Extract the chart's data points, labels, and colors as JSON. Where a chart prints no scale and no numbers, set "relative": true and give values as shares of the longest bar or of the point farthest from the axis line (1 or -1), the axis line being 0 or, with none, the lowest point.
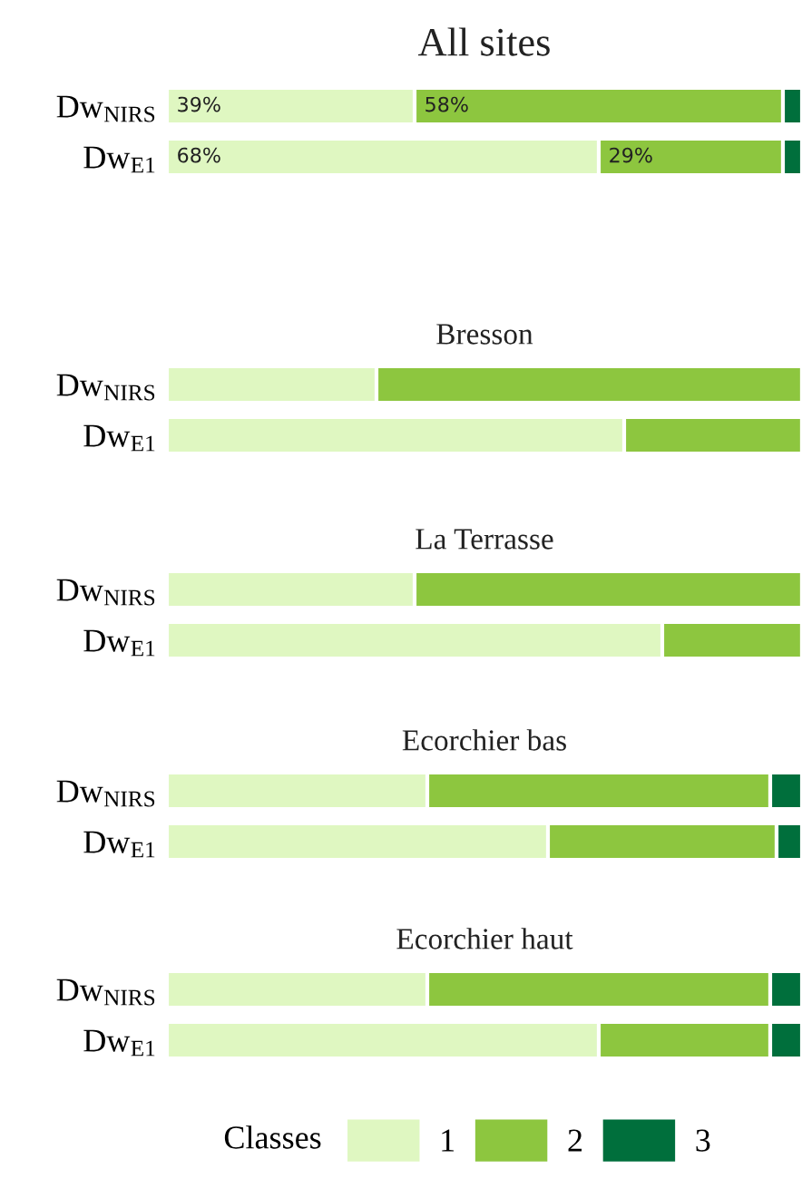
{
  "chart_data": [
    {
      "type": "bar",
      "orientation": "horizontal",
      "stacked": true,
      "title": "All sites",
      "categories": [
        "Dw$_{NIRS}$",
        "Dw$_{E1}$"
      ],
      "xlim": [
        0,
        100
      ],
      "tick_labels": "y",
      "legend": "bottom",
      "legend_title": "Classes",
      "series": [
        {
          "name": "1",
          "color": "#dff7c1",
          "values": [
            39,
            68
          ],
          "value_labels": [
            "39%",
            "68%"
          ]
        },
        {
          "name": "2",
          "color": "#8dc63f",
          "values": [
            58,
            29
          ],
          "value_labels": [
            "58%",
            "29%"
          ]
        },
        {
          "name": "3",
          "color": "#006f3c",
          "values": [
            3,
            3
          ]
        }
      ]
    },
    {
      "type": "bar",
      "orientation": "horizontal",
      "stacked": true,
      "relative": true,
      "title": "Bresson",
      "categories": [
        "Dw$_{NIRS}$",
        "Dw$_{E1}$"
      ],
      "tick_labels": "y",
      "legend": false,
      "series": [
        {
          "name": "1",
          "color": "#dff7c1",
          "values": [
            0.33,
            0.72
          ]
        },
        {
          "name": "2",
          "color": "#8dc63f",
          "values": [
            0.67,
            0.28
          ]
        },
        {
          "name": "3",
          "color": "#006f3c",
          "values": [
            0,
            0
          ]
        }
      ]
    },
    {
      "type": "bar",
      "orientation": "horizontal",
      "stacked": true,
      "relative": true,
      "title": "La Terrasse",
      "categories": [
        "Dw$_{NIRS}$",
        "Dw$_{E1}$"
      ],
      "tick_labels": "y",
      "legend": false,
      "series": [
        {
          "name": "1",
          "color": "#dff7c1",
          "values": [
            0.39,
            0.78
          ]
        },
        {
          "name": "2",
          "color": "#8dc63f",
          "values": [
            0.61,
            0.22
          ]
        },
        {
          "name": "3",
          "color": "#006f3c",
          "values": [
            0,
            0
          ]
        }
      ]
    },
    {
      "type": "bar",
      "orientation": "horizontal",
      "stacked": true,
      "relative": true,
      "title": "Ecorchier bas",
      "categories": [
        "Dw$_{NIRS}$",
        "Dw$_{E1}$"
      ],
      "tick_labels": "y",
      "legend": false,
      "series": [
        {
          "name": "1",
          "color": "#dff7c1",
          "values": [
            0.41,
            0.6
          ]
        },
        {
          "name": "2",
          "color": "#8dc63f",
          "values": [
            0.54,
            0.36
          ]
        },
        {
          "name": "3",
          "color": "#006f3c",
          "values": [
            0.05,
            0.04
          ]
        }
      ]
    },
    {
      "type": "bar",
      "orientation": "horizontal",
      "stacked": true,
      "relative": true,
      "title": "Ecorchier haut",
      "categories": [
        "Dw$_{NIRS}$",
        "Dw$_{E1}$"
      ],
      "tick_labels": "y",
      "legend": false,
      "series": [
        {
          "name": "1",
          "color": "#dff7c1",
          "values": [
            0.41,
            0.68
          ]
        },
        {
          "name": "2",
          "color": "#8dc63f",
          "values": [
            0.54,
            0.27
          ]
        },
        {
          "name": "3",
          "color": "#006f3c",
          "values": [
            0.05,
            0.05
          ]
        }
      ]
    }
  ]
}
